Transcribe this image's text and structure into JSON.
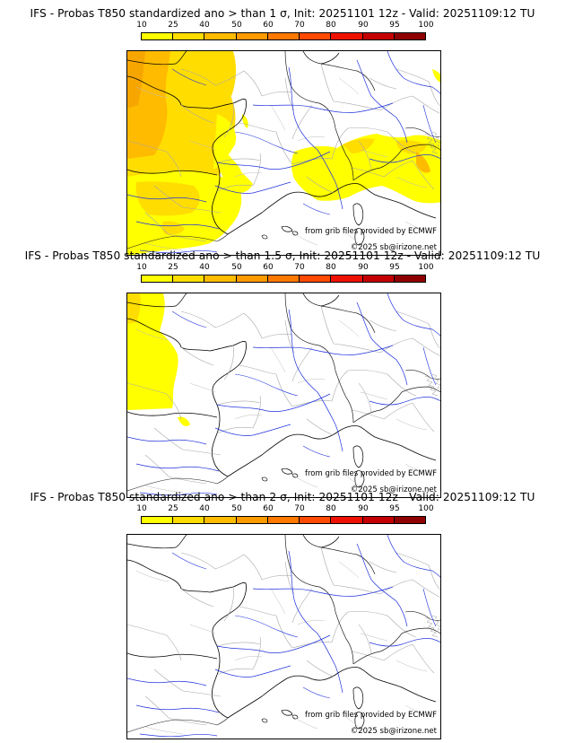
{
  "colorbar": {
    "ticks": [
      "10",
      "25",
      "40",
      "50",
      "60",
      "70",
      "80",
      "90",
      "95",
      "100"
    ],
    "colors": [
      "#ffff00",
      "#ffdd00",
      "#ffbb00",
      "#ff9a00",
      "#ff7800",
      "#ff4a00",
      "#ee1100",
      "#c40000",
      "#8e0000"
    ]
  },
  "panels": [
    {
      "title": "IFS - Probas T850  standardized ano > than 1 σ, Init: 20251101 12z - Valid: 20251109:12 TU",
      "credit_source": "from grib files provided by ECMWF",
      "credit_copyright": "©2025 sb@irizone.net"
    },
    {
      "title": "IFS - Probas T850  standardized ano > than 1.5 σ, Init: 20251101 12z - Valid: 20251109:12 TU",
      "credit_source": "from grib files provided by ECMWF",
      "credit_copyright": "©2025 sb@irizone.net"
    },
    {
      "title": "IFS - Probas T850  standardized ano > than 2 σ, Init: 20251101 12z - Valid: 20251109:12 TU",
      "credit_source": "from grib files provided by ECMWF",
      "credit_copyright": "©2025 sb@irizone.net"
    }
  ]
}
